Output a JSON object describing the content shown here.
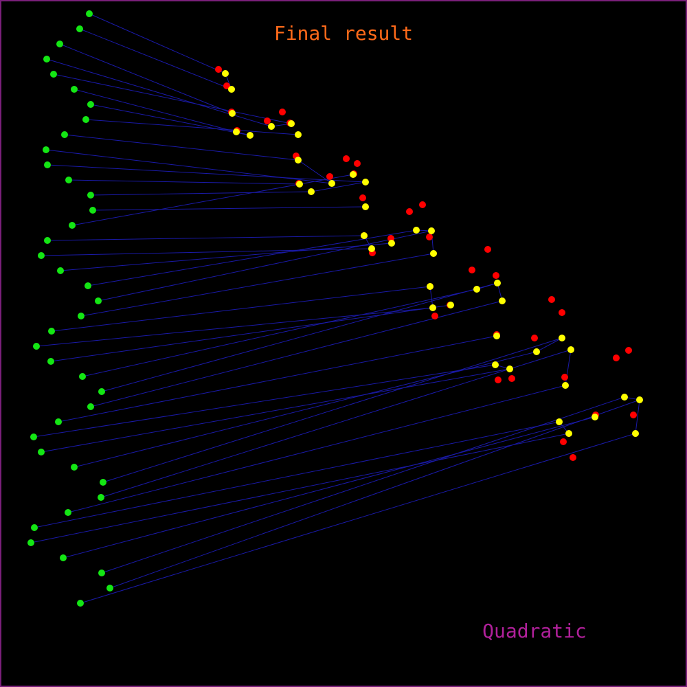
{
  "title": "Final result",
  "caption": "Quadratic",
  "colors": {
    "background": "#000000",
    "frame": "#7a1f7a",
    "link": "#1a1aa8",
    "source": "#14e614",
    "target": "#ff0000",
    "result": "#ffff00",
    "title": "#ff6a1a",
    "caption": "#b0209a"
  }
}
